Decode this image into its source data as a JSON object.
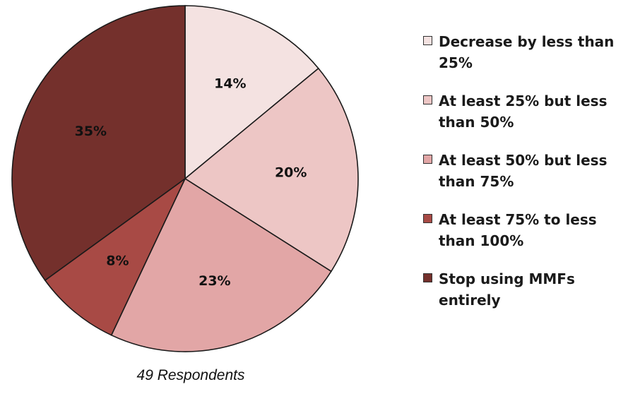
{
  "chart_data": {
    "type": "pie",
    "slices": [
      {
        "label": "Decrease by less than 25%",
        "value": 14,
        "display": "14%",
        "color": "#f4e2e1"
      },
      {
        "label": "At least 25% but less than 50%",
        "value": 20,
        "display": "20%",
        "color": "#edc6c5"
      },
      {
        "label": "At least 50% but less than 75%",
        "value": 23,
        "display": "23%",
        "color": "#e2a6a6"
      },
      {
        "label": "At least 75% to less than 100%",
        "value": 8,
        "display": "8%",
        "color": "#a84a45"
      },
      {
        "label": "Stop using MMFs entirely",
        "value": 35,
        "display": "35%",
        "color": "#74302c"
      }
    ],
    "legend_position": "right",
    "note": "49 Respondents"
  }
}
